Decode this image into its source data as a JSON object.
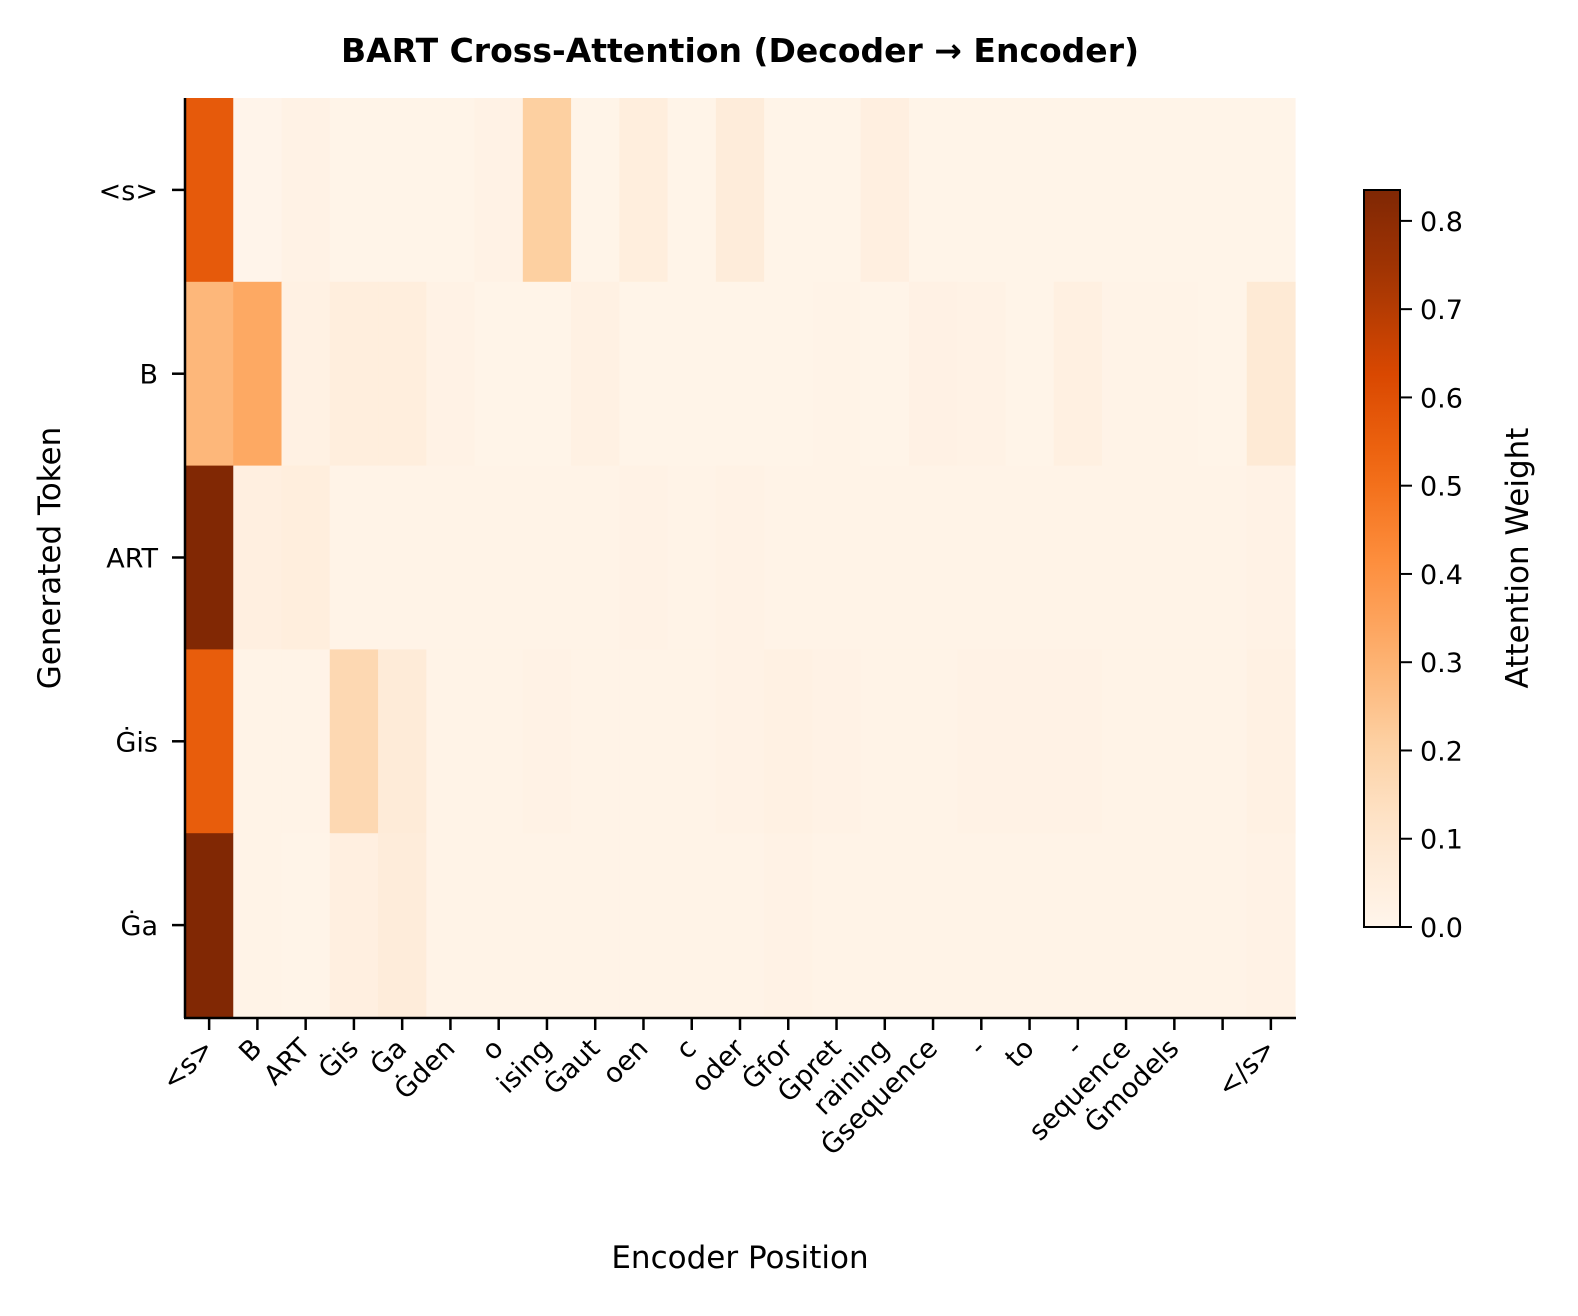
{
  "chart_data": {
    "type": "heatmap",
    "title": "BART Cross-Attention (Decoder → Encoder)",
    "xlabel": "Encoder Position",
    "ylabel": "Generated Token",
    "colorbar_label": "Attention Weight",
    "colormap": "Oranges",
    "colorbar_range": [
      0.0,
      0.835
    ],
    "colorbar_ticks": [
      "0.0",
      "0.1",
      "0.2",
      "0.3",
      "0.4",
      "0.5",
      "0.6",
      "0.7",
      "0.8"
    ],
    "x_categories": [
      "<s>",
      "B",
      "ART",
      "Ġis",
      "Ġa",
      "Ġden",
      "o",
      "ising",
      "Ġaut",
      "oen",
      "c",
      "oder",
      "Ġfor",
      "Ġpret",
      "raining",
      "Ġsequence",
      "-",
      "to",
      "-",
      "sequence",
      "Ġmodels",
      "",
      "</s>"
    ],
    "y_categories": [
      "<s>",
      "B",
      "ART",
      "Ġis",
      "Ġa"
    ],
    "values": [
      [
        0.57,
        0.005,
        0.02,
        0.01,
        0.01,
        0.01,
        0.02,
        0.21,
        0.01,
        0.05,
        0.01,
        0.06,
        0.01,
        0.01,
        0.04,
        0.01,
        0.01,
        0.01,
        0.01,
        0.01,
        0.01,
        0.01,
        0.01
      ],
      [
        0.285,
        0.33,
        0.03,
        0.05,
        0.05,
        0.02,
        0.01,
        0.01,
        0.03,
        0.01,
        0.01,
        0.01,
        0.01,
        0.015,
        0.01,
        0.025,
        0.02,
        0.01,
        0.035,
        0.015,
        0.015,
        0.01,
        0.08
      ],
      [
        0.83,
        0.04,
        0.05,
        0.015,
        0.015,
        0.015,
        0.015,
        0.015,
        0.015,
        0.02,
        0.015,
        0.02,
        0.015,
        0.015,
        0.015,
        0.015,
        0.015,
        0.015,
        0.015,
        0.015,
        0.015,
        0.015,
        0.02
      ],
      [
        0.56,
        0.015,
        0.015,
        0.17,
        0.07,
        0.015,
        0.015,
        0.02,
        0.015,
        0.015,
        0.015,
        0.02,
        0.03,
        0.02,
        0.015,
        0.015,
        0.02,
        0.02,
        0.02,
        0.015,
        0.015,
        0.015,
        0.03
      ],
      [
        0.83,
        0.015,
        0.01,
        0.04,
        0.06,
        0.015,
        0.015,
        0.015,
        0.015,
        0.015,
        0.015,
        0.015,
        0.02,
        0.015,
        0.015,
        0.015,
        0.015,
        0.015,
        0.015,
        0.015,
        0.015,
        0.015,
        0.02
      ]
    ]
  }
}
